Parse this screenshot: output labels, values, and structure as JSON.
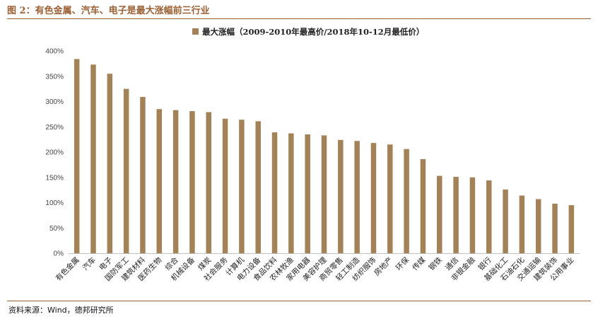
{
  "figure": {
    "title": "图 2：有色金属、汽车、电子是最大涨幅前三行业",
    "source": "资料来源：Wind，德邦研究所"
  },
  "colors": {
    "bar": "#a38258",
    "accent": "#9b5f34",
    "axis": "#bfbfbf"
  },
  "chart_data": {
    "type": "bar",
    "title": "",
    "xlabel": "",
    "ylabel": "",
    "ylim": [
      0,
      400
    ],
    "yticks": [
      0,
      50,
      100,
      150,
      200,
      250,
      300,
      350,
      400
    ],
    "ytick_labels": [
      "0%",
      "50%",
      "100%",
      "150%",
      "200%",
      "250%",
      "300%",
      "350%",
      "400%"
    ],
    "grid": false,
    "legend_position": "top-center",
    "categories": [
      "有色金属",
      "汽车",
      "电子",
      "国防军工",
      "建筑材料",
      "医药生物",
      "综合",
      "机械设备",
      "煤炭",
      "社会服务",
      "计算机",
      "电力设备",
      "食品饮料",
      "农林牧渔",
      "家用电器",
      "美容护理",
      "商贸零售",
      "轻工制造",
      "纺织服饰",
      "房地产",
      "环保",
      "传媒",
      "钢铁",
      "通信",
      "非银金融",
      "银行",
      "基础化工",
      "石油石化",
      "交通运输",
      "建筑装饰",
      "公用事业"
    ],
    "series": [
      {
        "name": "最大涨幅（2009-2010年最高价/2018年10-12月最低价）",
        "values": [
          384,
          373,
          355,
          325,
          309,
          285,
          283,
          281,
          279,
          266,
          264,
          261,
          239,
          237,
          235,
          233,
          224,
          222,
          218,
          215,
          206,
          186,
          153,
          151,
          150,
          144,
          126,
          114,
          107,
          98,
          95
        ]
      }
    ]
  }
}
